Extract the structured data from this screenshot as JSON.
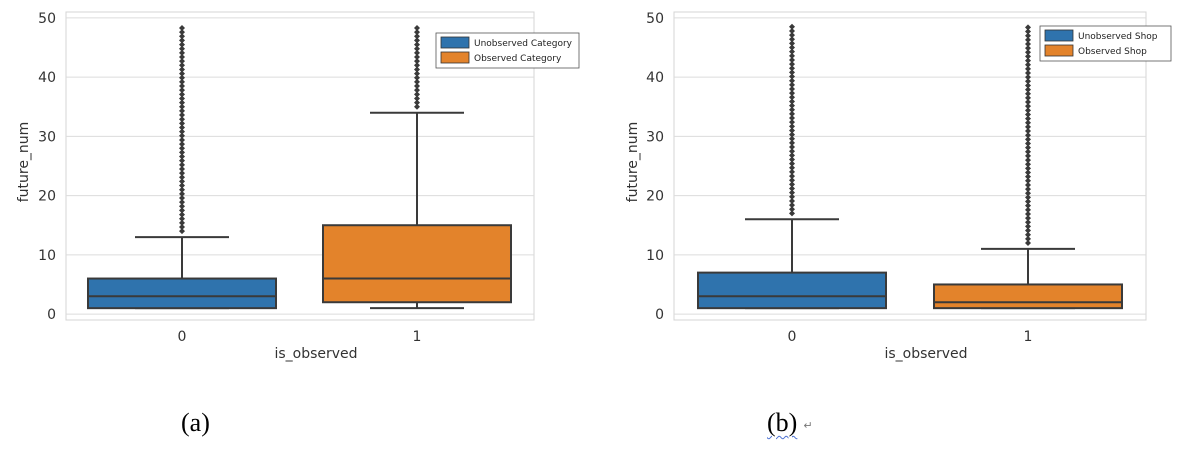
{
  "chart_data": [
    {
      "type": "box",
      "panel_label": "(a)",
      "xlabel": "is_observed",
      "ylabel": "future_num",
      "ylim": [
        -1,
        51
      ],
      "yticks": [
        0,
        10,
        20,
        30,
        40,
        50
      ],
      "grid": true,
      "legend_position": "top-right",
      "categories": [
        "0",
        "1"
      ],
      "series": [
        {
          "name": "Unobserved Category",
          "color": "#2f73ad",
          "category": "0",
          "whisker_low": 1,
          "q1": 1,
          "median": 3,
          "q3": 6,
          "whisker_high": 13,
          "fliers_from": 14,
          "fliers_to": 49
        },
        {
          "name": "Observed Category",
          "color": "#e3832b",
          "category": "1",
          "whisker_low": 1,
          "q1": 2,
          "median": 6,
          "q3": 15,
          "whisker_high": 34,
          "fliers_from": 35,
          "fliers_to": 49
        }
      ]
    },
    {
      "type": "box",
      "panel_label": "(b)",
      "xlabel": "is_observed",
      "ylabel": "future_num",
      "ylim": [
        -1,
        51
      ],
      "yticks": [
        0,
        10,
        20,
        30,
        40,
        50
      ],
      "grid": true,
      "legend_position": "top-right",
      "categories": [
        "0",
        "1"
      ],
      "series": [
        {
          "name": "Unobserved Shop",
          "color": "#2f73ad",
          "category": "0",
          "whisker_low": 1,
          "q1": 1,
          "median": 3,
          "q3": 7,
          "whisker_high": 16,
          "fliers_from": 17,
          "fliers_to": 49
        },
        {
          "name": "Observed Shop",
          "color": "#e3832b",
          "category": "1",
          "whisker_low": 1,
          "q1": 1,
          "median": 2,
          "q3": 5,
          "whisker_high": 11,
          "fliers_from": 12,
          "fliers_to": 49
        }
      ]
    }
  ],
  "captions": {
    "a": "(a)",
    "b": "(b)",
    "b_mark": "↵"
  }
}
